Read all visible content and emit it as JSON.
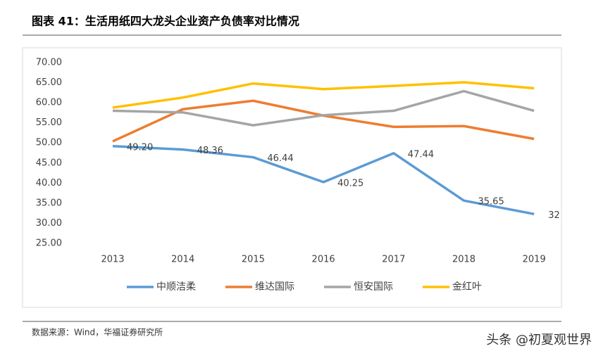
{
  "chart_data": {
    "type": "line",
    "title": "图表 41：生活用纸四大龙头企业资产负债率对比情况",
    "source": "数据来源：Wind，华福证券研究所",
    "watermark": "头条 @初夏观世界",
    "categories": [
      "2013",
      "2014",
      "2015",
      "2016",
      "2017",
      "2018",
      "2019"
    ],
    "ylim": [
      25,
      70
    ],
    "yticks": [
      {
        "value": 25,
        "label": "25.00"
      },
      {
        "value": 30,
        "label": "30.00"
      },
      {
        "value": 35,
        "label": "35.00"
      },
      {
        "value": 40,
        "label": "40.00"
      },
      {
        "value": 45,
        "label": "45.00"
      },
      {
        "value": 50,
        "label": "50.00"
      },
      {
        "value": 55,
        "label": "55.00"
      },
      {
        "value": 60,
        "label": "60.00"
      },
      {
        "value": 65,
        "label": "65.00"
      },
      {
        "value": 70,
        "label": "70.00"
      }
    ],
    "grid": false,
    "legend": "bottom",
    "series": [
      {
        "name": "中顺洁柔",
        "color": "#5b9bd5",
        "values": [
          49.2,
          48.36,
          46.44,
          40.25,
          47.44,
          35.65,
          32.3
        ],
        "value_labels": [
          "49.20",
          "48.36",
          "46.44",
          "40.25",
          "47.44",
          "35.65",
          "32"
        ]
      },
      {
        "name": "维达国际",
        "color": "#ed7d31",
        "values": [
          50.4,
          58.4,
          60.5,
          56.8,
          54.0,
          54.2,
          51.0
        ]
      },
      {
        "name": "恒安国际",
        "color": "#a5a5a5",
        "values": [
          58.0,
          57.6,
          54.4,
          56.9,
          58.0,
          62.9,
          58.0
        ]
      },
      {
        "name": "金红叶",
        "color": "#ffc000",
        "values": [
          58.8,
          61.3,
          64.8,
          63.4,
          64.2,
          65.1,
          63.6
        ]
      }
    ]
  }
}
